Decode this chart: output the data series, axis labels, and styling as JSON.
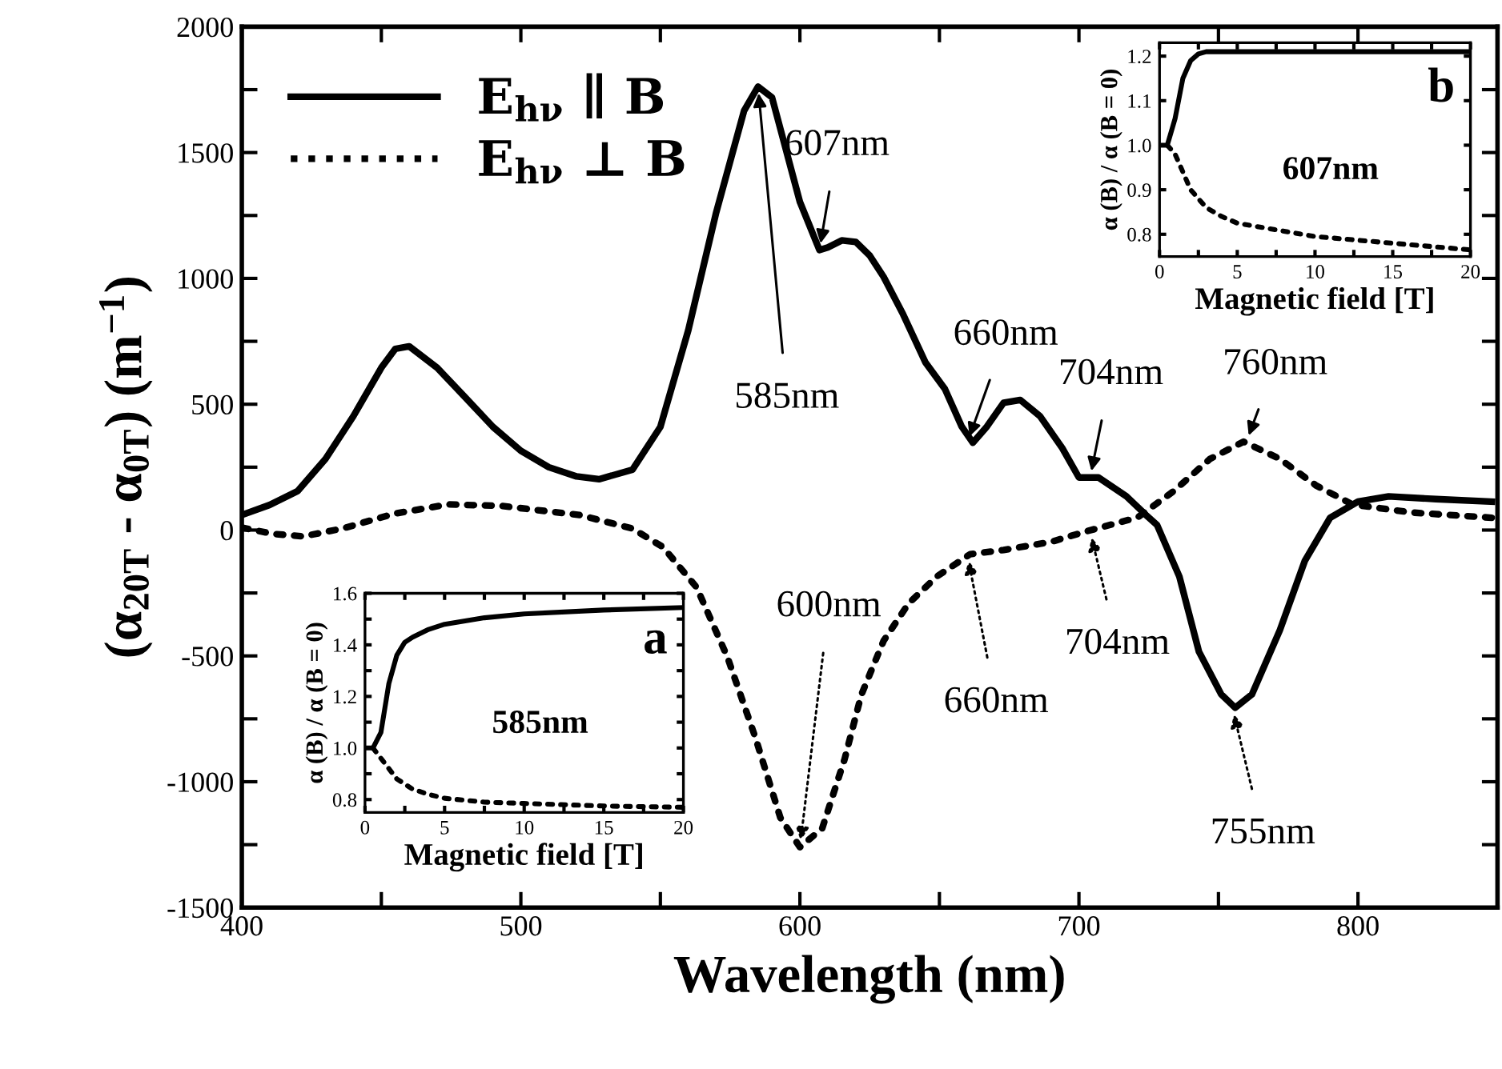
{
  "chart_data": [
    {
      "type": "line",
      "xlabel": "Wavelength (nm)",
      "ylabel": "(α$_{20T}$ - α$_{0T}$) (m$^{−1}$)",
      "xlim": [
        400,
        850
      ],
      "ylim": [
        -1500,
        2000
      ],
      "xticks": [
        400,
        {
          "value": 450,
          "label": null
        },
        500,
        {
          "value": 550,
          "label": null
        },
        600,
        {
          "value": 650,
          "label": null
        },
        700,
        {
          "value": 750,
          "label": null
        },
        800
      ],
      "yticks": [
        -1500,
        {
          "value": -1250,
          "label": null
        },
        -1000,
        {
          "value": -750,
          "label": null
        },
        -500,
        {
          "value": -250,
          "label": null
        },
        0,
        {
          "value": 250,
          "label": null
        },
        500,
        {
          "value": 750,
          "label": null
        },
        1000,
        {
          "value": 1250,
          "label": null
        },
        1500,
        {
          "value": 1750,
          "label": null
        },
        2000
      ],
      "grid": false,
      "legend": "top left",
      "marker": "none",
      "series": [
        {
          "name": "E$_{hν}$ ∥ B",
          "color": "#000000",
          "line_style": "solid",
          "x": [
            400,
            410,
            420,
            430,
            440,
            450,
            455,
            460,
            470,
            480,
            490,
            500,
            510,
            520,
            528,
            540,
            550,
            560,
            570,
            580,
            585,
            590,
            600,
            607,
            610,
            615,
            620,
            625,
            630,
            637,
            645,
            652,
            658,
            662,
            667,
            673,
            679,
            686,
            694,
            700,
            707,
            717,
            724,
            728,
            736,
            743,
            751,
            756,
            762,
            772,
            781,
            790,
            800,
            811,
            828,
            848
          ],
          "values": [
            60,
            100,
            155,
            283,
            453,
            645,
            720,
            730,
            645,
            528,
            410,
            315,
            250,
            213,
            202,
            240,
            410,
            794,
            1262,
            1666,
            1762,
            1719,
            1304,
            1113,
            1123,
            1151,
            1145,
            1091,
            1006,
            857,
            666,
            560,
            411,
            347,
            411,
            506,
            517,
            453,
            326,
            209,
            209,
            134,
            60,
            20,
            -185,
            -483,
            -653,
            -706,
            -653,
            -398,
            -121,
            49,
            113,
            134,
            123,
            113
          ]
        },
        {
          "name": "E$_{hν}$ ⊥ B",
          "color": "#000000",
          "line_style": "dotted",
          "x": [
            400,
            411,
            422,
            436,
            455,
            474,
            493,
            521,
            540,
            551,
            563,
            574,
            584,
            593,
            600,
            608,
            616,
            622,
            630,
            639,
            649,
            661,
            673,
            690,
            703,
            721,
            734,
            747,
            759,
            772,
            785,
            798,
            819,
            848
          ],
          "values": [
            10,
            -15,
            -25,
            6,
            66,
            102,
            96,
            60,
            6,
            -68,
            -228,
            -504,
            -823,
            -1143,
            -1260,
            -1185,
            -911,
            -655,
            -440,
            -291,
            -185,
            -96,
            -79,
            -47,
            -4,
            50,
            155,
            283,
            351,
            283,
            177,
            102,
            70,
            49
          ]
        }
      ],
      "annotations": [
        {
          "text": "585nm",
          "x": 585,
          "y": 1762
        },
        {
          "text": "607nm",
          "x": 607,
          "y": 1113
        },
        {
          "text": "660nm",
          "x": 660,
          "y": 347
        },
        {
          "text": "704nm",
          "x": 704,
          "y": 209
        },
        {
          "text": "760nm",
          "x": 760,
          "y": 351
        },
        {
          "text": "600nm",
          "x": 600,
          "y": -1260
        },
        {
          "text": "660nm",
          "x": 660,
          "y": -96
        },
        {
          "text": "704nm",
          "x": 704,
          "y": -4
        },
        {
          "text": "755nm",
          "x": 755,
          "y": -706
        }
      ]
    },
    {
      "type": "line",
      "xlabel": "Magnetic field [T]",
      "ylabel": "α (B) / α (B = 0)",
      "xlim": [
        0,
        20
      ],
      "ylim": [
        0.75,
        1.23
      ],
      "xticks": [
        0,
        {
          "value": 2.5,
          "label": null
        },
        5,
        {
          "value": 7.5,
          "label": null
        },
        10,
        {
          "value": 12.5,
          "label": null
        },
        15,
        {
          "value": 17.5,
          "label": null
        },
        20
      ],
      "yticks": [
        {
          "value": 0.8,
          "label": "0.8"
        },
        {
          "value": 0.9,
          "label": "0.9"
        },
        {
          "value": 1.0,
          "label": "1.0"
        },
        {
          "value": 1.1,
          "label": "1.1"
        },
        {
          "value": 1.2,
          "label": "1.2"
        }
      ],
      "grid": false,
      "marker": "none",
      "series": [
        {
          "color": "#000000",
          "line_style": "solid",
          "x": [
            0,
            0.5,
            1,
            1.5,
            2,
            2.5,
            3,
            20
          ],
          "values": [
            1.0,
            1.0,
            1.06,
            1.15,
            1.19,
            1.205,
            1.21,
            1.21
          ]
        },
        {
          "color": "#000000",
          "line_style": "dotted",
          "x": [
            0.5,
            1,
            1.5,
            2,
            3,
            4,
            5,
            7.5,
            10,
            15,
            20
          ],
          "values": [
            1.0,
            0.98,
            0.94,
            0.9,
            0.86,
            0.84,
            0.825,
            0.81,
            0.795,
            0.78,
            0.765
          ]
        }
      ],
      "annotations": [
        "b",
        "607nm"
      ]
    },
    {
      "type": "line",
      "xlabel": "Magnetic field [T]",
      "ylabel": "α (B) / α (B = 0)",
      "xlim": [
        0,
        20
      ],
      "ylim": [
        0.75,
        1.6
      ],
      "xticks": [
        0,
        {
          "value": 2.5,
          "label": null
        },
        5,
        {
          "value": 7.5,
          "label": null
        },
        10,
        {
          "value": 12.5,
          "label": null
        },
        15,
        {
          "value": 17.5,
          "label": null
        },
        20
      ],
      "yticks": [
        {
          "value": 0.8,
          "label": "0.8"
        },
        {
          "value": 0.9,
          "label": null
        },
        {
          "value": 1.0,
          "label": "1.0"
        },
        {
          "value": 1.1,
          "label": null
        },
        {
          "value": 1.2,
          "label": "1.2"
        },
        {
          "value": 1.3,
          "label": null
        },
        {
          "value": 1.4,
          "label": "1.4"
        },
        {
          "value": 1.5,
          "label": null
        },
        {
          "value": 1.6,
          "label": "1.6"
        }
      ],
      "grid": false,
      "marker": "none",
      "series": [
        {
          "color": "#000000",
          "line_style": "solid",
          "x": [
            0,
            0.5,
            1,
            1.5,
            2,
            2.5,
            3,
            4,
            5,
            7.5,
            10,
            15,
            20
          ],
          "values": [
            1.0,
            1.0,
            1.06,
            1.25,
            1.36,
            1.41,
            1.43,
            1.46,
            1.48,
            1.505,
            1.52,
            1.535,
            1.545
          ]
        },
        {
          "color": "#000000",
          "line_style": "dotted",
          "x": [
            0.5,
            1,
            1.5,
            2,
            3,
            4,
            5,
            7.5,
            10,
            15,
            20
          ],
          "values": [
            1.0,
            0.96,
            0.92,
            0.88,
            0.84,
            0.82,
            0.805,
            0.79,
            0.785,
            0.775,
            0.77
          ]
        }
      ],
      "annotations": [
        "a",
        "585nm"
      ]
    }
  ]
}
